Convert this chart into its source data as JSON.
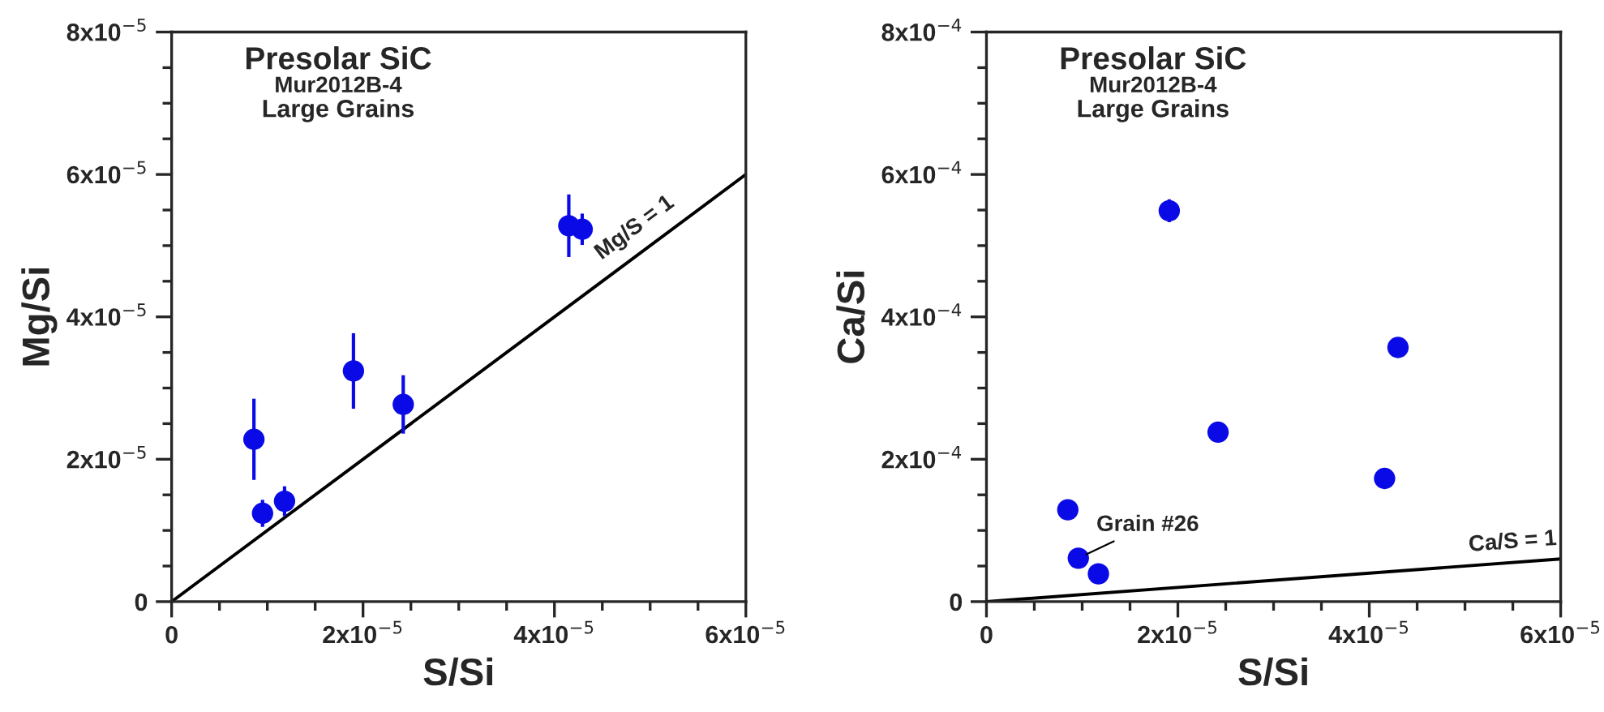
{
  "chart_data": [
    {
      "type": "scatter",
      "xlabel": "S/Si",
      "ylabel": "Mg/Si",
      "xlim": [
        0,
        6e-05
      ],
      "ylim": [
        0,
        8e-05
      ],
      "xticks": [
        0,
        {
          "value": 2e-05,
          "label": "2x10$^{−5}$"
        },
        {
          "value": 4e-05,
          "label": "4x10$^{−5}$"
        },
        {
          "value": 6e-05,
          "label": "6x10$^{−5}$"
        }
      ],
      "yticks": [
        0,
        {
          "value": 2e-05,
          "label": "2x10$^{−5}$"
        },
        {
          "value": 4e-05,
          "label": "4x10$^{−5}$"
        },
        {
          "value": 6e-05,
          "label": "6x10$^{−5}$"
        },
        {
          "value": 8e-05,
          "label": "8x10$^{−5}$"
        }
      ],
      "grid": false,
      "legend": false,
      "series": [
        {
          "marker": "circle",
          "color": "#0a0ae6",
          "x": [
            8.6e-06,
            9.5e-06,
            1.18e-05,
            1.9e-05,
            2.42e-05,
            4.15e-05,
            4.29e-05
          ],
          "values": [
            2.28e-05,
            1.24e-05,
            1.41e-05,
            3.24e-05,
            2.77e-05,
            5.28e-05,
            5.23e-05
          ],
          "errors": [
            5.7e-06,
            1.9e-06,
            2.1e-06,
            5.3e-06,
            4.1e-06,
            4.4e-06,
            2.2e-06
          ]
        },
        {
          "type": "line",
          "color": "#000000",
          "x": [
            0,
            6e-05
          ],
          "values": [
            0,
            6e-05
          ]
        }
      ],
      "annotations": [
        "Presolar SiC",
        "Mur2012B-4",
        "Large Grains",
        {
          "text": "Mg/S = 1",
          "x": 5e-05,
          "y": 5e-05
        }
      ]
    },
    {
      "type": "scatter",
      "xlabel": "S/Si",
      "ylabel": "Ca/Si",
      "xlim": [
        0,
        6e-05
      ],
      "ylim": [
        0,
        0.0008
      ],
      "xticks": [
        0,
        {
          "value": 2e-05,
          "label": "2x10$^{−5}$"
        },
        {
          "value": 4e-05,
          "label": "4x10$^{−5}$"
        },
        {
          "value": 6e-05,
          "label": "6x10$^{−5}$"
        }
      ],
      "yticks": [
        0,
        {
          "value": 0.0002,
          "label": "2x10$^{−4}$"
        },
        {
          "value": 0.0004,
          "label": "4x10$^{−4}$"
        },
        {
          "value": 0.0006,
          "label": "6x10$^{−4}$"
        },
        {
          "value": 0.0008,
          "label": "8x10$^{−4}$"
        }
      ],
      "grid": false,
      "legend": false,
      "series": [
        {
          "marker": "circle",
          "color": "#0a0ae6",
          "x": [
            8.5e-06,
            9.6e-06,
            1.17e-05,
            1.91e-05,
            2.42e-05,
            4.16e-05,
            4.3e-05
          ],
          "values": [
            0.000129,
            6.1e-05,
            3.9e-05,
            0.000549,
            0.000238,
            0.000173,
            0.000357
          ],
          "errors": [
            null,
            null,
            null,
            1.6e-05,
            null,
            null,
            null
          ]
        },
        {
          "type": "line",
          "color": "#000000",
          "x": [
            0,
            6e-05
          ],
          "values": [
            0,
            6e-05
          ]
        }
      ],
      "annotations": [
        "Presolar SiC",
        "Mur2012B-4",
        "Large Grains",
        {
          "text": "Grain #26",
          "x": 9.6e-06,
          "y": 6.1e-05
        },
        {
          "text": "Ca/S = 1",
          "x": 5.6e-05,
          "y": 5.6e-05
        }
      ]
    }
  ]
}
